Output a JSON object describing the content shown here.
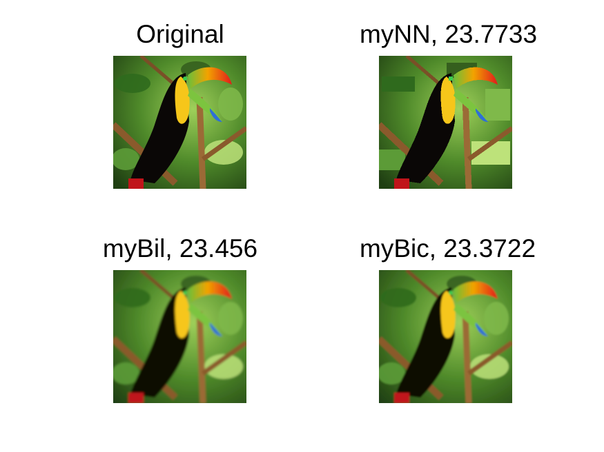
{
  "panels": [
    {
      "title": "Original"
    },
    {
      "title": "myNN, 23.7733"
    },
    {
      "title": "myBil, 23.456"
    },
    {
      "title": "myBic, 23.3722"
    }
  ]
}
